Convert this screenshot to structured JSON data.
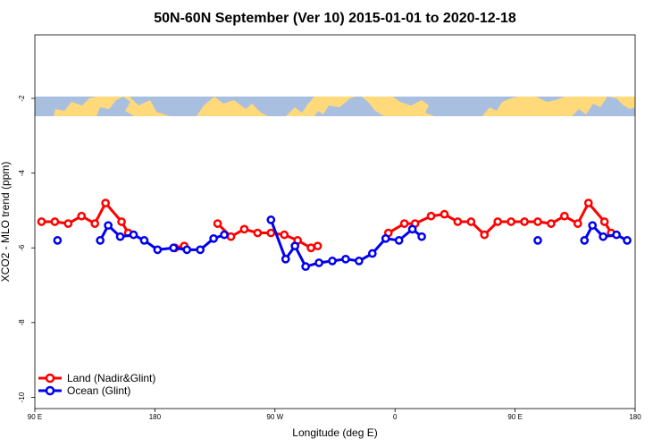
{
  "chart_data": {
    "type": "line",
    "title": "50N-60N September (Ver 10)   2015-01-01 to 2020-12-18",
    "xlabel": "Longitude (deg E)",
    "ylabel": "XCO2 - MLO trend (ppm)",
    "xlim": [
      90,
      540
    ],
    "ylim": [
      -10.3,
      -0.3
    ],
    "x_ticks": [
      {
        "value": 90,
        "label": "90 E"
      },
      {
        "value": 180,
        "label": "180"
      },
      {
        "value": 270,
        "label": "90 W"
      },
      {
        "value": 360,
        "label": "0"
      },
      {
        "value": 450,
        "label": "90 E"
      },
      {
        "value": 540,
        "label": "180"
      }
    ],
    "y_ticks": [
      {
        "value": -2,
        "label": "-2"
      },
      {
        "value": -4,
        "label": "-4"
      },
      {
        "value": -6,
        "label": "-6"
      },
      {
        "value": -8,
        "label": "-8"
      },
      {
        "value": -10,
        "label": "-10"
      }
    ],
    "map_strip": {
      "y_top": -2.33,
      "y_bottom": -2.83,
      "ocean_color": "#a9bfe0",
      "land_color": "#ffd97a"
    },
    "series": [
      {
        "name": "Land (Nadir&Glint)",
        "color": "#ff0000",
        "segments": [
          [
            [
              95,
              -5.3
            ],
            [
              105,
              -5.3
            ],
            [
              115,
              -5.35
            ],
            [
              125,
              -5.15
            ],
            [
              135,
              -5.35
            ],
            [
              143,
              -4.8
            ],
            [
              155,
              -5.3
            ],
            [
              160,
              -5.6
            ]
          ],
          [
            [
              195,
              -6.0
            ],
            [
              202,
              -5.95
            ]
          ],
          [
            [
              227,
              -5.35
            ],
            [
              237,
              -5.7
            ],
            [
              247,
              -5.5
            ],
            [
              257,
              -5.6
            ],
            [
              267,
              -5.6
            ],
            [
              277,
              -5.65
            ],
            [
              287,
              -5.8
            ],
            [
              297,
              -6.0
            ],
            [
              302,
              -5.95
            ]
          ],
          [
            [
              355,
              -5.6
            ],
            [
              367,
              -5.35
            ],
            [
              375,
              -5.35
            ],
            [
              387,
              -5.15
            ],
            [
              397,
              -5.1
            ],
            [
              407,
              -5.3
            ],
            [
              417,
              -5.3
            ],
            [
              427,
              -5.65
            ],
            [
              437,
              -5.3
            ],
            [
              447,
              -5.3
            ],
            [
              457,
              -5.3
            ],
            [
              467,
              -5.3
            ],
            [
              477,
              -5.35
            ],
            [
              487,
              -5.15
            ],
            [
              497,
              -5.35
            ],
            [
              505,
              -4.8
            ],
            [
              517,
              -5.3
            ],
            [
              522,
              -5.6
            ]
          ]
        ]
      },
      {
        "name": "Ocean (Glint)",
        "color": "#0000ee",
        "segments": [
          [
            [
              107,
              -5.8
            ]
          ],
          [
            [
              139,
              -5.8
            ],
            [
              145,
              -5.4
            ],
            [
              154,
              -5.7
            ],
            [
              164,
              -5.65
            ],
            [
              172,
              -5.8
            ],
            [
              182,
              -6.05
            ],
            [
              194,
              -6.0
            ],
            [
              204,
              -6.05
            ],
            [
              214,
              -6.05
            ],
            [
              224,
              -5.75
            ],
            [
              232,
              -5.65
            ]
          ],
          [
            [
              267,
              -5.25
            ],
            [
              278,
              -6.3
            ],
            [
              285,
              -5.95
            ],
            [
              293,
              -6.5
            ],
            [
              303,
              -6.4
            ],
            [
              313,
              -6.35
            ],
            [
              323,
              -6.3
            ],
            [
              333,
              -6.35
            ],
            [
              343,
              -6.15
            ],
            [
              353,
              -5.75
            ],
            [
              363,
              -5.8
            ],
            [
              373,
              -5.5
            ],
            [
              380,
              -5.7
            ]
          ],
          [
            [
              467,
              -5.8
            ]
          ],
          [
            [
              502,
              -5.8
            ],
            [
              508,
              -5.4
            ],
            [
              516,
              -5.7
            ],
            [
              526,
              -5.65
            ],
            [
              534,
              -5.8
            ]
          ]
        ]
      }
    ],
    "legend": {
      "position": "bottom-left"
    }
  }
}
